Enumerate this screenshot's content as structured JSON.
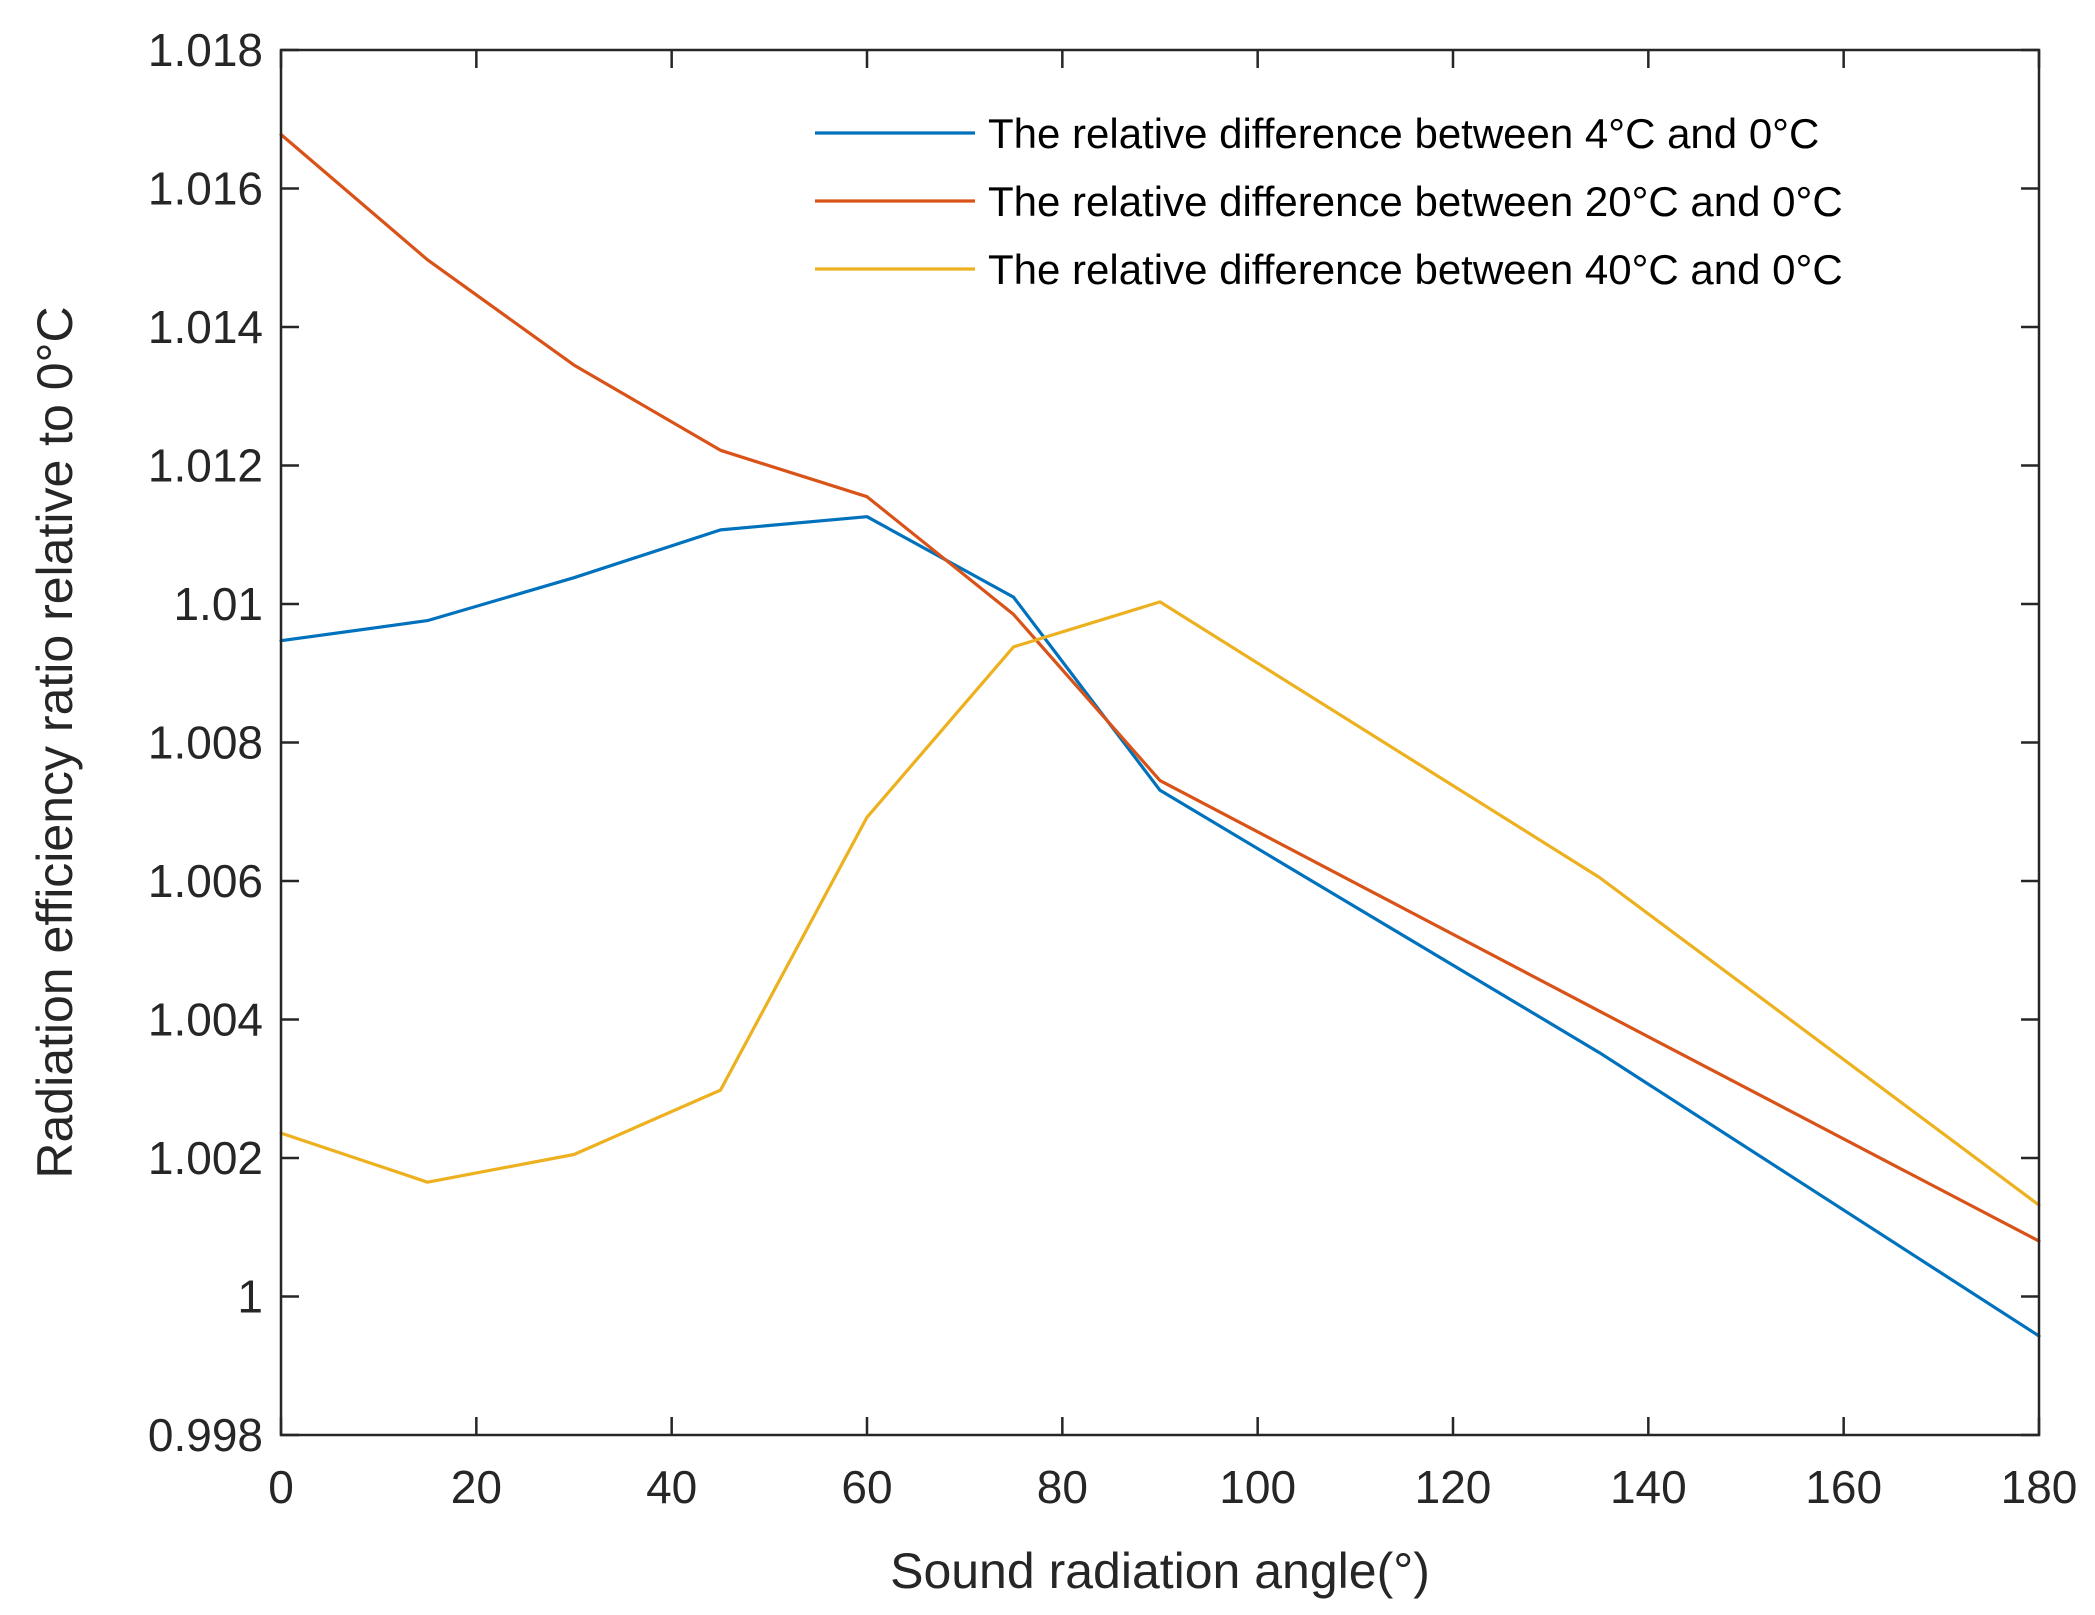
{
  "chart_data": {
    "type": "line",
    "title": "",
    "xlabel": "Sound radiation angle(°)",
    "ylabel": "Radiation efficiency ratio relative to 0°C",
    "xlim": [
      0,
      180
    ],
    "ylim": [
      0.998,
      1.018
    ],
    "xticks": [
      0,
      20,
      40,
      60,
      80,
      100,
      120,
      140,
      160,
      180
    ],
    "xtick_labels": [
      "0",
      "20",
      "40",
      "60",
      "80",
      "100",
      "120",
      "140",
      "160",
      "180"
    ],
    "yticks": [
      0.998,
      1.0,
      1.002,
      1.004,
      1.006,
      1.008,
      1.01,
      1.012,
      1.014,
      1.016,
      1.018
    ],
    "ytick_labels": [
      "0.998",
      "1",
      "1.002",
      "1.004",
      "1.006",
      "1.008",
      "1.01",
      "1.012",
      "1.014",
      "1.016",
      "1.018"
    ],
    "grid": false,
    "legend_position": "top-right",
    "series": [
      {
        "name": "The relative difference between 4°C and 0°C",
        "color": "#0072BD",
        "x": [
          0,
          15,
          30,
          45,
          60,
          75,
          90,
          135,
          180
        ],
        "values": [
          1.00947,
          1.00976,
          1.01038,
          1.01107,
          1.01126,
          1.0101,
          1.00731,
          1.00352,
          0.99943
        ]
      },
      {
        "name": "The relative difference between 20°C and 0°C",
        "color": "#D95319",
        "x": [
          0,
          15,
          30,
          45,
          60,
          75,
          90,
          135,
          180
        ],
        "values": [
          1.01678,
          1.01497,
          1.01345,
          1.01222,
          1.01155,
          1.00985,
          1.00745,
          1.00412,
          1.0008
        ]
      },
      {
        "name": "The relative difference between 40°C and 0°C",
        "color": "#EDB120",
        "x": [
          0,
          15,
          30,
          45,
          60,
          75,
          90,
          135,
          180
        ],
        "values": [
          1.00236,
          1.00165,
          1.00205,
          1.00298,
          1.00692,
          1.00938,
          1.01003,
          1.00605,
          1.00132
        ]
      }
    ]
  }
}
